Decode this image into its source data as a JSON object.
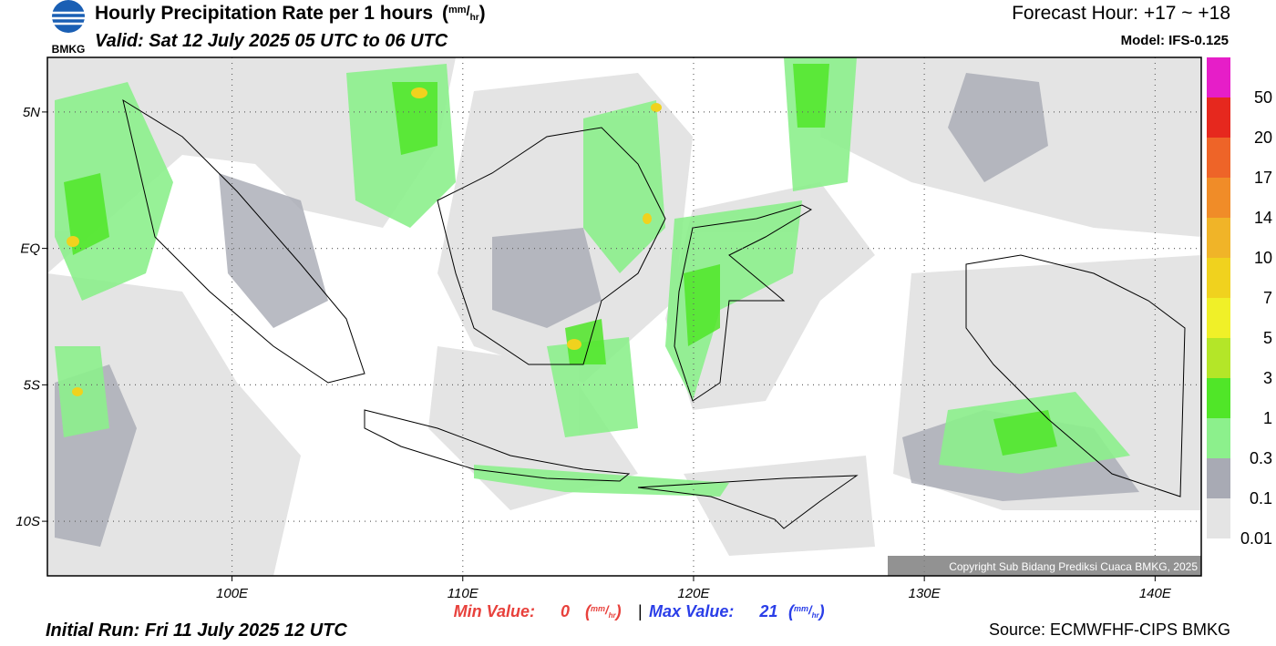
{
  "logo_text": "BMKG",
  "header": {
    "title": "Hourly Precipitation Rate per 1 hours",
    "unit": {
      "open": "(",
      "num": "mm",
      "slash": "/",
      "den": "hr",
      "close": ")"
    },
    "valid": "Valid: Sat 12 July 2025 05 UTC to 06 UTC",
    "forecast_hour": "Forecast Hour: +17 ~ +18",
    "model": "Model: IFS-0.125"
  },
  "map": {
    "lon_range": [
      92,
      142
    ],
    "lat_range": [
      -12,
      7
    ],
    "lon_ticks": [
      {
        "value": 100,
        "label": "100E"
      },
      {
        "value": 110,
        "label": "110E"
      },
      {
        "value": 120,
        "label": "120E"
      },
      {
        "value": 130,
        "label": "130E"
      },
      {
        "value": 140,
        "label": "140E"
      }
    ],
    "lat_ticks": [
      {
        "value": 5,
        "label": "5N"
      },
      {
        "value": 0,
        "label": "EQ"
      },
      {
        "value": -5,
        "label": "5S"
      },
      {
        "value": -10,
        "label": "10S"
      }
    ],
    "copyright": "Copyright Sub Bidang Prediksi Cuaca BMKG, 2025"
  },
  "legend": {
    "labels": [
      50,
      20,
      17,
      14,
      10,
      7,
      5,
      3,
      1,
      0.3,
      0.1,
      0.01
    ],
    "colors": [
      "#e61ec8",
      "#e6281e",
      "#ee6428",
      "#f08c28",
      "#f0b428",
      "#f0d21e",
      "#f0f028",
      "#b4e628",
      "#50e628",
      "#8cf08c",
      "#a8aab4",
      "#e4e4e4"
    ]
  },
  "stats": {
    "min_label": "Min Value:",
    "min_value": 0,
    "separator": "|",
    "max_label": "Max Value:",
    "max_value": 21
  },
  "footer": {
    "initial_run": "Initial Run: Fri 11 July 2025 12 UTC",
    "source": "Source: ECMWFHF-CIPS BMKG"
  }
}
